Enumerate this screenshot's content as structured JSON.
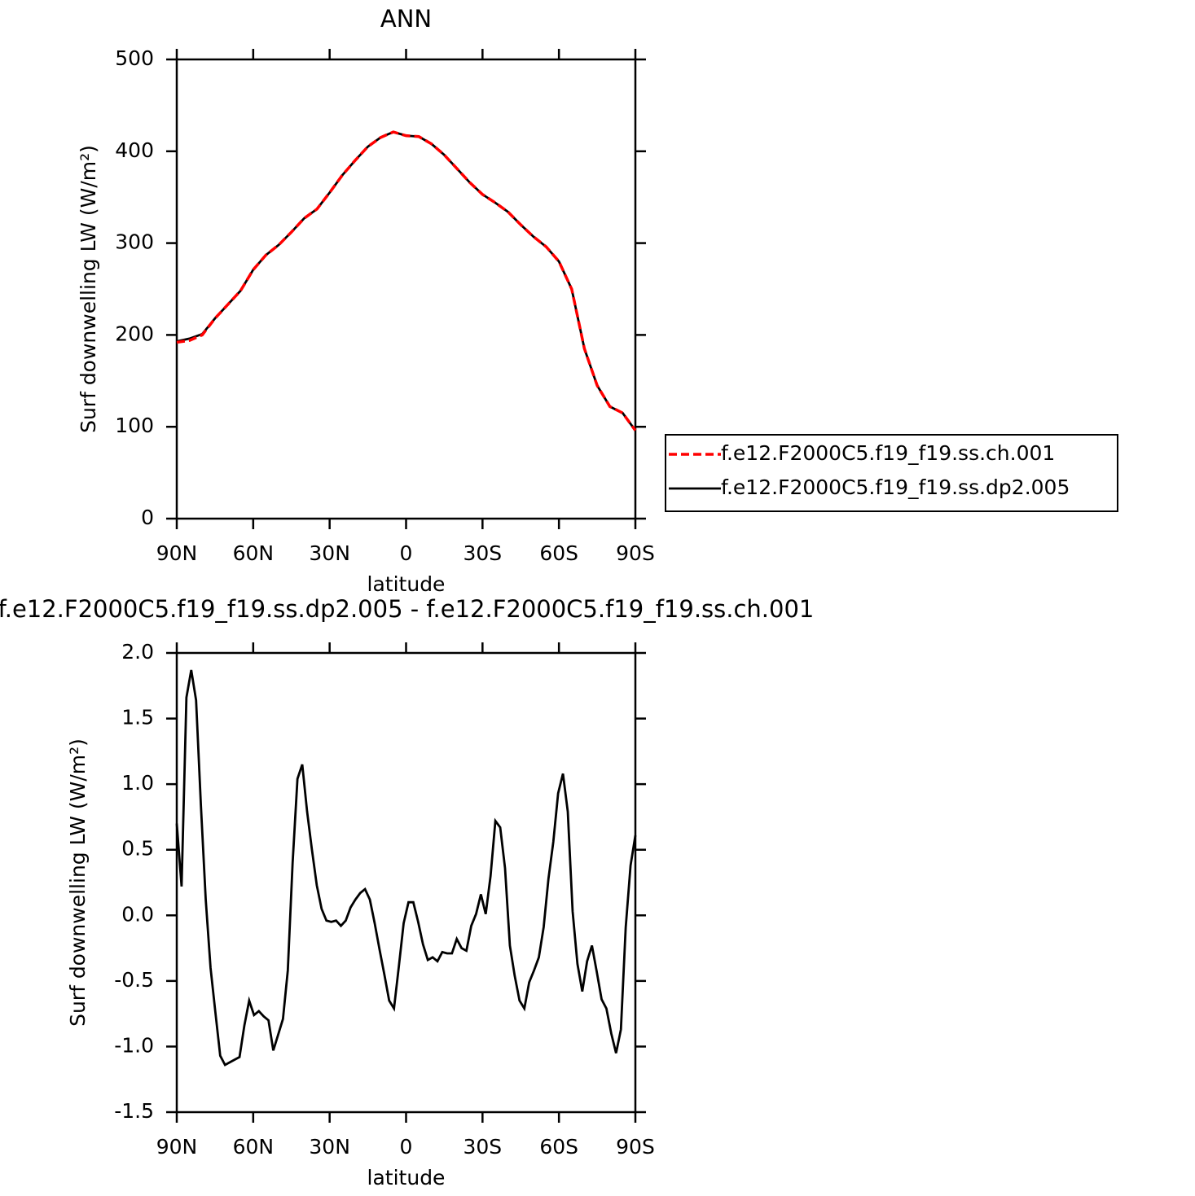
{
  "chart_data": [
    {
      "type": "line",
      "title": "ANN",
      "xlabel": "latitude",
      "ylabel": "Surf downwelling LW (W/m²)",
      "x": [
        90,
        85,
        80,
        75,
        70,
        65,
        60,
        55,
        50,
        45,
        40,
        35,
        30,
        25,
        20,
        15,
        10,
        5,
        0,
        -5,
        -10,
        -15,
        -20,
        -25,
        -30,
        -35,
        -40,
        -45,
        -50,
        -55,
        -60,
        -65,
        -70,
        -75,
        -80,
        -85,
        -90
      ],
      "series": [
        {
          "name": "f.e12.F2000C5.f19_f19.ss.ch.001",
          "color": "#ff0000",
          "line_style": "dashed",
          "values": [
            192,
            194,
            200,
            218,
            233,
            248,
            271,
            287,
            298,
            312,
            327,
            337,
            355,
            374,
            390,
            405,
            415,
            421,
            417,
            416,
            408,
            396,
            381,
            366,
            353,
            344,
            334,
            320,
            307,
            296,
            280,
            250,
            185,
            145,
            122,
            115,
            96
          ]
        },
        {
          "name": "f.e12.F2000C5.f19_f19.ss.dp2.005",
          "color": "#000000",
          "line_style": "solid",
          "values": [
            193,
            196,
            201,
            218,
            233,
            248,
            271,
            287,
            298,
            312,
            327,
            337,
            355,
            374,
            390,
            405,
            415,
            421,
            417,
            416,
            408,
            396,
            381,
            366,
            353,
            344,
            334,
            320,
            307,
            296,
            280,
            250,
            185,
            145,
            122,
            115,
            96
          ]
        }
      ],
      "xlim": [
        90,
        -90
      ],
      "xticks": [
        {
          "value": 90,
          "label": "90N"
        },
        {
          "value": 60,
          "label": "60N"
        },
        {
          "value": 30,
          "label": "30N"
        },
        0,
        {
          "value": -30,
          "label": "30S"
        },
        {
          "value": -60,
          "label": "60S"
        },
        {
          "value": -90,
          "label": "90S"
        }
      ],
      "ylim": [
        0,
        500
      ],
      "yticks": [
        0,
        100,
        200,
        300,
        400,
        500
      ],
      "legend": "right"
    },
    {
      "type": "line",
      "title": "f.e12.F2000C5.f19_f19.ss.dp2.005 - f.e12.F2000C5.f19_f19.ss.ch.001",
      "xlabel": "latitude",
      "ylabel": "Surf downwelling LW (W/m²)",
      "x": [
        90,
        88.11,
        86.21,
        84.32,
        82.42,
        80.53,
        78.63,
        76.74,
        74.84,
        72.95,
        71.05,
        69.16,
        67.26,
        65.37,
        63.47,
        61.58,
        59.68,
        57.79,
        55.89,
        54.0,
        52.11,
        50.21,
        48.32,
        46.42,
        44.53,
        42.63,
        40.74,
        38.84,
        36.95,
        35.05,
        33.16,
        31.26,
        29.37,
        27.47,
        25.58,
        23.68,
        21.79,
        19.89,
        18.0,
        16.11,
        14.21,
        12.32,
        10.42,
        8.53,
        6.63,
        4.74,
        2.84,
        0.95,
        -0.95,
        -2.84,
        -4.74,
        -6.63,
        -8.53,
        -10.42,
        -12.32,
        -14.21,
        -16.11,
        -18.0,
        -19.89,
        -21.79,
        -23.68,
        -25.58,
        -27.47,
        -29.37,
        -31.26,
        -33.16,
        -35.05,
        -36.95,
        -38.84,
        -40.74,
        -42.63,
        -44.53,
        -46.42,
        -48.32,
        -50.21,
        -52.11,
        -54.0,
        -55.89,
        -57.79,
        -59.68,
        -61.58,
        -63.47,
        -65.37,
        -67.26,
        -69.16,
        -71.05,
        -72.95,
        -74.84,
        -76.74,
        -78.63,
        -80.53,
        -82.42,
        -84.32,
        -86.21,
        -88.11,
        -90
      ],
      "values": [
        0.7,
        0.22,
        1.66,
        1.87,
        1.64,
        0.84,
        0.12,
        -0.4,
        -0.74,
        -1.07,
        -1.14,
        -1.12,
        -1.1,
        -1.08,
        -0.84,
        -0.65,
        -0.76,
        -0.73,
        -0.77,
        -0.8,
        -1.03,
        -0.91,
        -0.79,
        -0.42,
        0.4,
        1.04,
        1.15,
        0.79,
        0.5,
        0.23,
        0.05,
        -0.04,
        -0.05,
        -0.04,
        -0.08,
        -0.04,
        0.06,
        0.12,
        0.17,
        0.2,
        0.12,
        -0.06,
        -0.26,
        -0.45,
        -0.65,
        -0.71,
        -0.39,
        -0.06,
        0.1,
        0.1,
        -0.05,
        -0.22,
        -0.34,
        -0.32,
        -0.35,
        -0.28,
        -0.29,
        -0.29,
        -0.18,
        -0.25,
        -0.27,
        -0.08,
        0.01,
        0.16,
        0.01,
        0.3,
        0.72,
        0.67,
        0.36,
        -0.23,
        -0.46,
        -0.65,
        -0.71,
        -0.51,
        -0.42,
        -0.32,
        -0.09,
        0.28,
        0.56,
        0.93,
        1.08,
        0.79,
        0.03,
        -0.37,
        -0.58,
        -0.35,
        -0.23,
        -0.43,
        -0.64,
        -0.71,
        -0.9,
        -1.05,
        -0.87,
        -0.09,
        0.38,
        0.61
      ],
      "color": "#000000",
      "xlim": [
        90,
        -90
      ],
      "xticks": [
        {
          "value": 90,
          "label": "90N"
        },
        {
          "value": 60,
          "label": "60N"
        },
        {
          "value": 30,
          "label": "30N"
        },
        0,
        {
          "value": -30,
          "label": "30S"
        },
        {
          "value": -60,
          "label": "60S"
        },
        {
          "value": -90,
          "label": "90S"
        }
      ],
      "ylim": [
        -1.5,
        2.0
      ],
      "yticks": [
        -1.5,
        {
          "value": -1,
          "label": "-1.0"
        },
        -0.5,
        {
          "value": 0,
          "label": "0.0"
        },
        0.5,
        {
          "value": 1,
          "label": "1.0"
        },
        1.5,
        {
          "value": 2,
          "label": "2.0"
        }
      ]
    }
  ]
}
